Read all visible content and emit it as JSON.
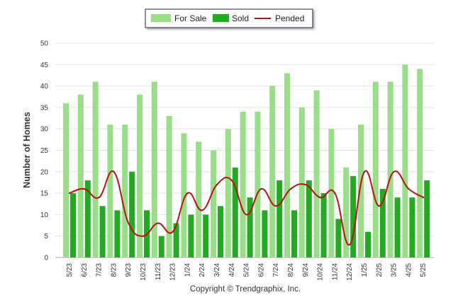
{
  "chart_data": {
    "type": "bar",
    "ylabel": "Number of Homes",
    "xlabel": "",
    "ylim": [
      0,
      50
    ],
    "yticks": [
      "0",
      "5",
      "10",
      "15",
      "20",
      "25",
      "30",
      "35",
      "40",
      "45",
      "50"
    ],
    "grid": true,
    "legend_position": "top-center",
    "categories": [
      "5/23",
      "6/23",
      "7/23",
      "8/23",
      "9/23",
      "10/23",
      "11/23",
      "12/23",
      "1/24",
      "2/24",
      "3/24",
      "4/24",
      "5/24",
      "6/24",
      "7/24",
      "8/24",
      "9/24",
      "10/24",
      "11/24",
      "12/24",
      "1/25",
      "2/25",
      "3/25",
      "4/25",
      "5/25"
    ],
    "series": [
      {
        "name": "For Sale",
        "type": "bar",
        "color": "#99dd88",
        "values": [
          36,
          38,
          41,
          31,
          31,
          38,
          41,
          33,
          29,
          27,
          25,
          30,
          34,
          34,
          40,
          43,
          35,
          39,
          30,
          21,
          31,
          41,
          41,
          45,
          44
        ]
      },
      {
        "name": "Sold",
        "type": "bar",
        "color": "#22aa22",
        "values": [
          15,
          18,
          12,
          11,
          20,
          11,
          5,
          8,
          10,
          10,
          12,
          21,
          14,
          11,
          18,
          11,
          18,
          15,
          9,
          19,
          6,
          16,
          14,
          14,
          18
        ]
      },
      {
        "name": "Pended",
        "type": "line",
        "color": "#bb1111",
        "values": [
          15,
          16,
          14,
          20,
          8,
          5,
          8,
          6,
          15,
          11,
          17,
          18,
          10,
          16,
          12,
          16,
          17,
          14,
          15,
          3,
          20,
          12,
          20,
          16,
          14
        ]
      }
    ]
  },
  "footer": {
    "copyright": "Copyright © Trendgraphix, Inc."
  }
}
